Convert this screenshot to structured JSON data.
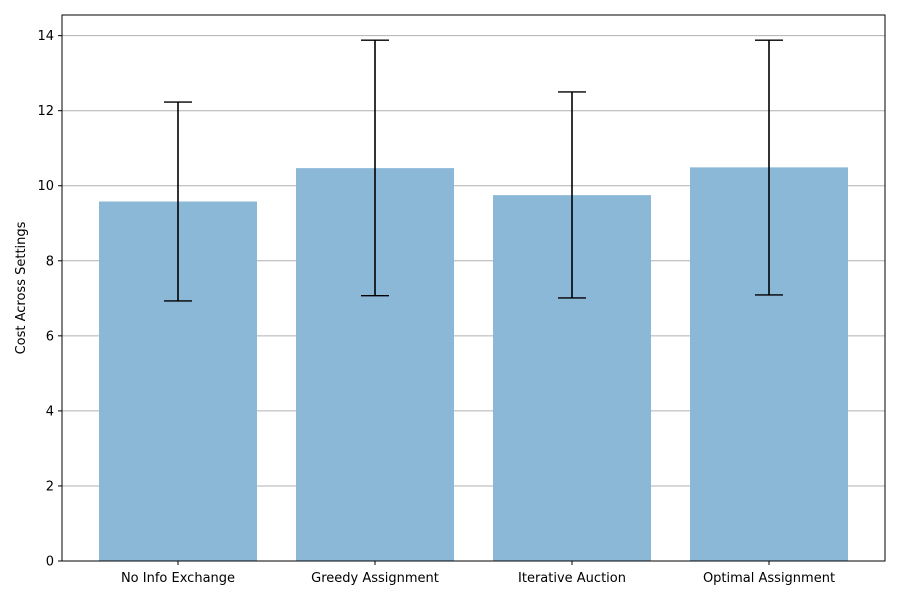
{
  "chart_data": {
    "type": "bar",
    "title": "",
    "xlabel": "",
    "ylabel": "Cost Across Settings",
    "categories": [
      "No Info Exchange",
      "Greedy Assignment",
      "Iterative Auction",
      "Optimal Assignment"
    ],
    "values": [
      9.58,
      10.47,
      9.75,
      10.49
    ],
    "error_low": [
      6.93,
      7.07,
      7.01,
      7.09
    ],
    "error_high": [
      12.23,
      13.88,
      12.5,
      13.88
    ],
    "ylim": [
      0,
      14.55
    ],
    "yticks": [
      "0",
      "2",
      "4",
      "6",
      "8",
      "10",
      "12",
      "14"
    ],
    "ytick_values": [
      0,
      2,
      4,
      6,
      8,
      10,
      12,
      14
    ],
    "grid": "horizontal",
    "bar_color": "#8cb8d8",
    "errorbar_color": "#000000",
    "grid_color": "#b0b0b0"
  }
}
